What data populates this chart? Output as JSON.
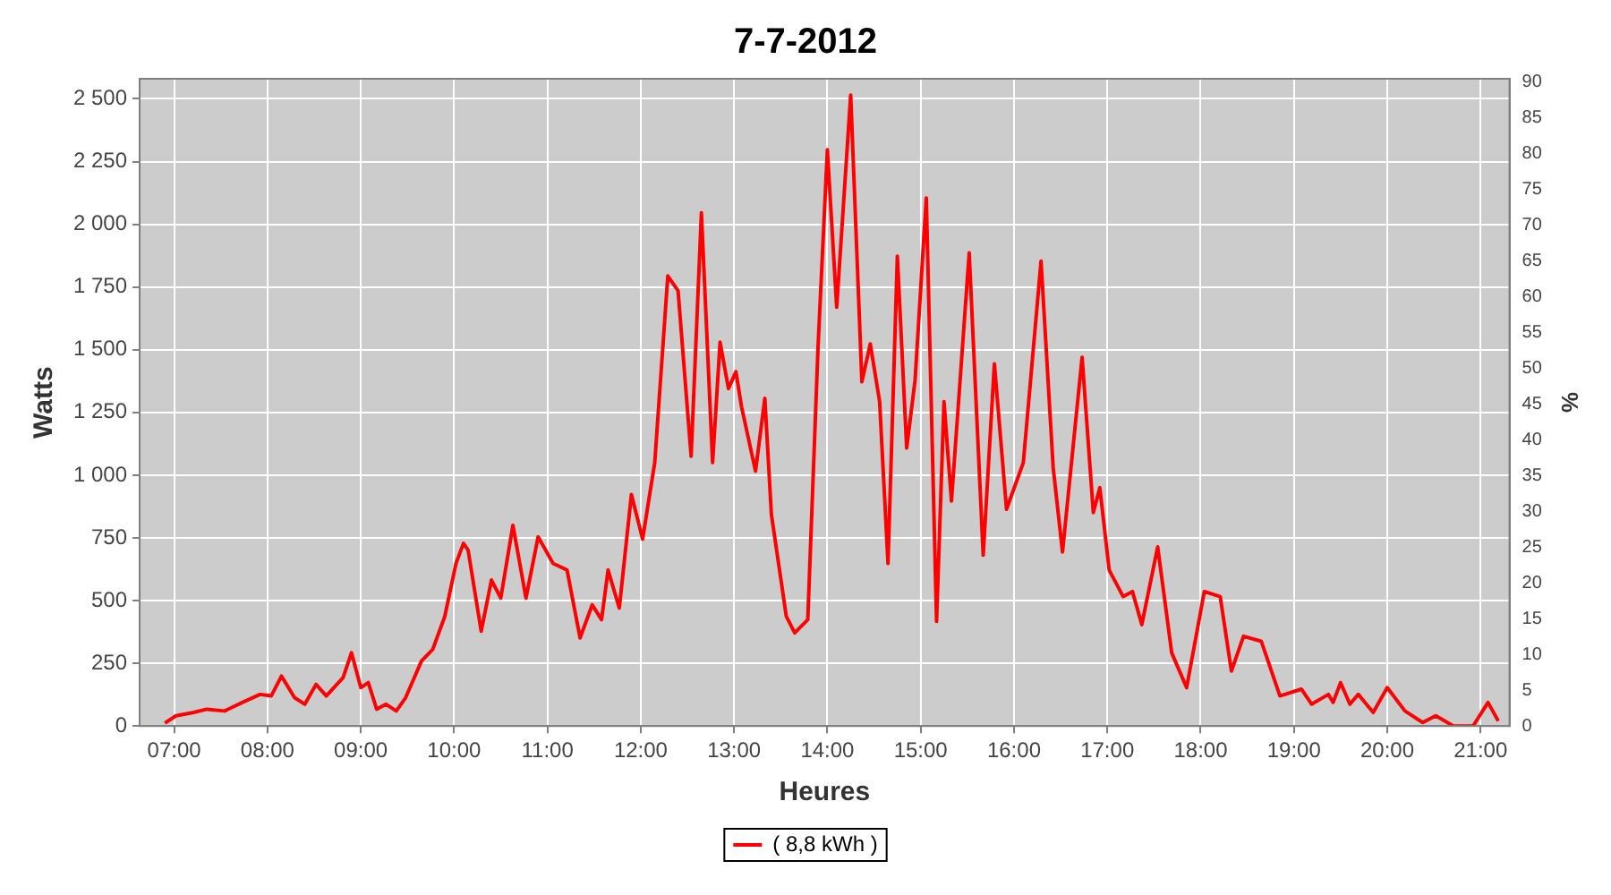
{
  "chart_data": {
    "type": "line",
    "title": "7-7-2012",
    "xlabel": "Heures",
    "ylabel": "Watts",
    "y2label": "%",
    "xlim": [
      6.63,
      21.31
    ],
    "xticks": [
      {
        "value": 7,
        "label": "07:00"
      },
      {
        "value": 8,
        "label": "08:00"
      },
      {
        "value": 9,
        "label": "09:00"
      },
      {
        "value": 10,
        "label": "10:00"
      },
      {
        "value": 11,
        "label": "11:00"
      },
      {
        "value": 12,
        "label": "12:00"
      },
      {
        "value": 13,
        "label": "13:00"
      },
      {
        "value": 14,
        "label": "14:00"
      },
      {
        "value": 15,
        "label": "15:00"
      },
      {
        "value": 16,
        "label": "16:00"
      },
      {
        "value": 17,
        "label": "17:00"
      },
      {
        "value": 18,
        "label": "18:00"
      },
      {
        "value": 19,
        "label": "19:00"
      },
      {
        "value": 20,
        "label": "20:00"
      },
      {
        "value": 21,
        "label": "21:00"
      }
    ],
    "ylim": [
      0,
      2580
    ],
    "yticks": [
      0,
      250,
      500,
      750,
      {
        "value": 1000,
        "label": "1 000"
      },
      {
        "value": 1250,
        "label": "1 250"
      },
      {
        "value": 1500,
        "label": "1 500"
      },
      {
        "value": 1750,
        "label": "1 750"
      },
      {
        "value": 2000,
        "label": "2 000"
      },
      {
        "value": 2250,
        "label": "2 250"
      },
      {
        "value": 2500,
        "label": "2 500"
      }
    ],
    "y2lim": [
      0,
      90.5
    ],
    "y2ticks": [
      0,
      5,
      10,
      15,
      20,
      25,
      30,
      35,
      40,
      45,
      50,
      55,
      60,
      65,
      70,
      75,
      80,
      85,
      90
    ],
    "grid": true,
    "legend": "bottom",
    "marker": "none",
    "line_style": "solid",
    "series": [
      {
        "name": "( 8,8 kWh )",
        "color": "#ff0000",
        "x": [
          6.9,
          7.02,
          7.21,
          7.35,
          7.54,
          7.73,
          7.92,
          8.04,
          8.15,
          8.29,
          8.4,
          8.52,
          8.63,
          8.81,
          8.9,
          9.0,
          9.08,
          9.17,
          9.27,
          9.38,
          9.48,
          9.65,
          9.77,
          9.9,
          10.02,
          10.1,
          10.15,
          10.29,
          10.4,
          10.5,
          10.63,
          10.77,
          10.9,
          11.06,
          11.21,
          11.35,
          11.48,
          11.58,
          11.65,
          11.77,
          11.9,
          12.02,
          12.15,
          12.29,
          12.4,
          12.54,
          12.65,
          12.77,
          12.85,
          12.94,
          13.02,
          13.08,
          13.23,
          13.33,
          13.4,
          13.56,
          13.65,
          13.79,
          13.9,
          14.0,
          14.1,
          14.25,
          14.37,
          14.46,
          14.56,
          14.65,
          14.75,
          14.85,
          14.94,
          15.06,
          15.17,
          15.25,
          15.33,
          15.52,
          15.67,
          15.79,
          15.92,
          16.1,
          16.29,
          16.42,
          16.52,
          16.73,
          16.85,
          16.92,
          17.02,
          17.17,
          17.27,
          17.37,
          17.54,
          17.69,
          17.85,
          18.04,
          18.21,
          18.33,
          18.46,
          18.65,
          18.85,
          19.08,
          19.19,
          19.37,
          19.42,
          19.5,
          19.6,
          19.69,
          19.85,
          20.0,
          20.19,
          20.38,
          20.52,
          20.71,
          20.92,
          21.08,
          21.19
        ],
        "values": [
          12,
          41,
          54,
          67,
          60,
          94,
          126,
          120,
          199,
          113,
          87,
          166,
          120,
          193,
          292,
          153,
          173,
          67,
          87,
          60,
          113,
          259,
          305,
          437,
          648,
          728,
          701,
          378,
          582,
          510,
          800,
          510,
          754,
          648,
          622,
          351,
          483,
          424,
          622,
          470,
          923,
          745,
          1050,
          1794,
          1735,
          1075,
          2046,
          1050,
          1530,
          1345,
          1412,
          1273,
          1016,
          1306,
          844,
          437,
          371,
          424,
          1510,
          2297,
          1669,
          2515,
          1372,
          1523,
          1293,
          648,
          1873,
          1108,
          1379,
          2105,
          417,
          1293,
          897,
          1886,
          681,
          1444,
          864,
          1050,
          1853,
          1030,
          694,
          1470,
          851,
          950,
          622,
          516,
          536,
          404,
          714,
          292,
          153,
          536,
          516,
          219,
          358,
          338,
          120,
          147,
          87,
          126,
          94,
          173,
          87,
          126,
          54,
          153,
          60,
          14,
          41,
          0,
          0,
          94,
          20
        ]
      }
    ]
  }
}
